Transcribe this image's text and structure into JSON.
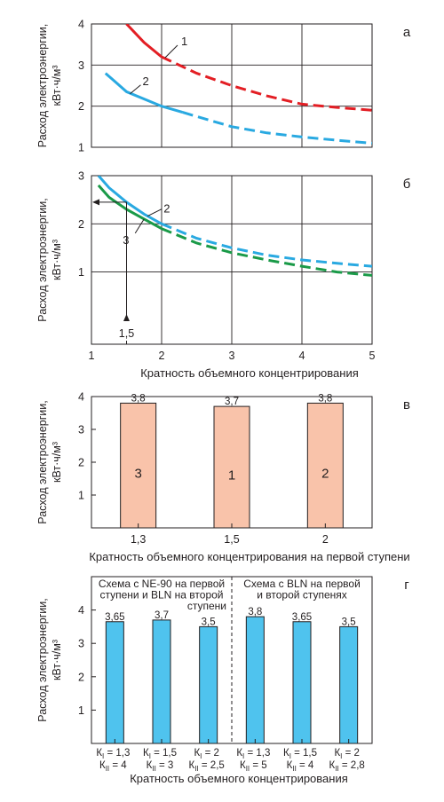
{
  "chart_data": [
    {
      "id": "a",
      "type": "line",
      "panel_letter": "а",
      "ylabel": "Расход электроэнергии, кВт·ч/м³",
      "ylim": [
        1,
        4
      ],
      "yticks": [
        1,
        2,
        3,
        4
      ],
      "xlim": [
        1,
        5
      ],
      "xticks": [
        1,
        2,
        3,
        4,
        5
      ],
      "grid": true,
      "series": [
        {
          "name": "1",
          "color": "#e31e24",
          "solid_until": 2,
          "x": [
            1.5,
            1.75,
            2,
            2.5,
            3,
            3.5,
            4,
            4.5,
            5
          ],
          "y": [
            4.0,
            3.55,
            3.2,
            2.8,
            2.5,
            2.25,
            2.05,
            1.97,
            1.9
          ]
        },
        {
          "name": "2",
          "color": "#29a9e1",
          "solid_until": 2.3,
          "x": [
            1.2,
            1.5,
            2,
            2.3,
            2.5,
            3,
            3.5,
            4,
            4.5,
            5
          ],
          "y": [
            2.8,
            2.35,
            2.0,
            1.85,
            1.75,
            1.5,
            1.35,
            1.25,
            1.17,
            1.1
          ]
        }
      ]
    },
    {
      "id": "b",
      "type": "line",
      "panel_letter": "б",
      "ylabel": "Расход электроэнергии, кВт·ч/м³",
      "xlabel": "Кратность объемного концентрирования",
      "ylim": [
        -0.5,
        3
      ],
      "yticks": [
        1,
        2,
        3
      ],
      "xlim": [
        1,
        5
      ],
      "xticks": [
        1,
        2,
        3,
        4,
        5
      ],
      "extra_xtick": "1,5",
      "grid": true,
      "series": [
        {
          "name": "2",
          "color": "#29a9e1",
          "solid_until": 2,
          "x": [
            1.1,
            1.25,
            1.5,
            1.75,
            2,
            2.5,
            3,
            3.5,
            4,
            4.5,
            5
          ],
          "y": [
            3.0,
            2.75,
            2.45,
            2.2,
            2.0,
            1.7,
            1.5,
            1.35,
            1.25,
            1.18,
            1.12
          ]
        },
        {
          "name": "3",
          "color": "#1a9a48",
          "solid_until": 2,
          "x": [
            1.1,
            1.25,
            1.5,
            1.75,
            2,
            2.5,
            3,
            3.5,
            4,
            4.5,
            5
          ],
          "y": [
            2.8,
            2.55,
            2.3,
            2.1,
            1.9,
            1.6,
            1.4,
            1.25,
            1.12,
            1.0,
            0.93
          ]
        }
      ],
      "annotation_point": {
        "x": 1.5,
        "y": 2.45
      }
    },
    {
      "id": "v",
      "type": "bar",
      "panel_letter": "в",
      "ylabel": "Расход электроэнергии, кВт·ч/м³",
      "xlabel": "Кратность объемного концентрирования на первой ступени",
      "ylim": [
        0,
        4
      ],
      "yticks": [
        1,
        2,
        3,
        4
      ],
      "categories": [
        "1,3",
        "1,5",
        "2"
      ],
      "values": [
        3.8,
        3.7,
        3.8
      ],
      "value_labels": [
        "3,8",
        "3,7",
        "3,8"
      ],
      "bar_numbers": [
        "3",
        "1",
        "2"
      ],
      "bar_color": "#f9c3aa"
    },
    {
      "id": "g",
      "type": "bar",
      "panel_letter": "г",
      "ylabel": "Расход электроэнергии, кВт·ч/м³",
      "xlabel": "Кратность объемного концентрирования",
      "ylim": [
        0,
        5
      ],
      "yticks": [
        1,
        2,
        3,
        4
      ],
      "groups": [
        {
          "title": [
            "Схема с NE-90 на первой",
            "ступени и BLN на второй",
            "ступени"
          ]
        },
        {
          "title": [
            "Схема с BLN на первой",
            "и второй ступенях"
          ]
        }
      ],
      "categories": [
        {
          "k1": "1,3",
          "k2": "4"
        },
        {
          "k1": "1,5",
          "k2": "3"
        },
        {
          "k1": "2",
          "k2": "2,5"
        },
        {
          "k1": "1,3",
          "k2": "5"
        },
        {
          "k1": "1,5",
          "k2": "4"
        },
        {
          "k1": "2",
          "k2": "2,8"
        }
      ],
      "values": [
        3.65,
        3.7,
        3.5,
        3.8,
        3.65,
        3.5
      ],
      "value_labels": [
        "3,65",
        "3,7",
        "3,5",
        "3,8",
        "3,65",
        "3,5"
      ],
      "k_label": "К",
      "sub_I": "I",
      "sub_II": "II",
      "bar_color": "#4fc3ee"
    }
  ]
}
